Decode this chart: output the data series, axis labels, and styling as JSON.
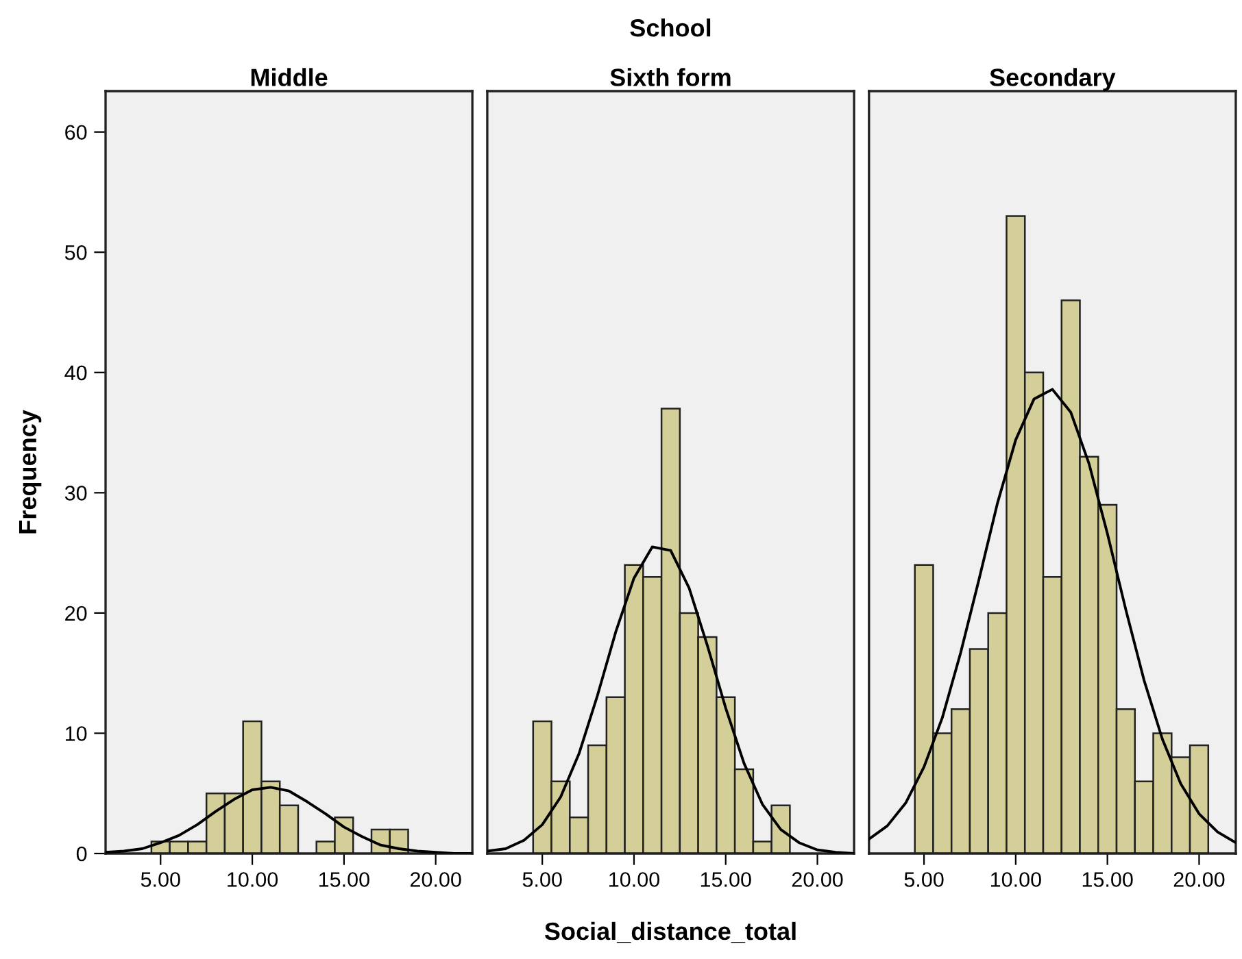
{
  "chart_data": [
    {
      "type": "histogram",
      "title": "Middle",
      "ylabel": "Frequency",
      "annotations": [
        "School"
      ],
      "color": "#d4cf98",
      "bins": [
        4.5,
        5.5,
        6.5,
        7.5,
        8.5,
        9.5,
        10.5,
        11.5,
        12.5,
        13.5,
        14.5,
        15.5,
        16.5,
        17.5,
        18.5
      ],
      "values": [
        1,
        1,
        1,
        5,
        5,
        11,
        6,
        4,
        0,
        1,
        3,
        0,
        2,
        2
      ],
      "series": [
        {
          "type": "line",
          "color": "#000000",
          "x": [
            2,
            3,
            4,
            5,
            6,
            7,
            8,
            9,
            10,
            11,
            12,
            13,
            14,
            15,
            16,
            17,
            18,
            19,
            20,
            21,
            22
          ],
          "values": [
            0.1,
            0.2,
            0.4,
            0.9,
            1.5,
            2.4,
            3.5,
            4.5,
            5.3,
            5.5,
            5.2,
            4.3,
            3.3,
            2.2,
            1.4,
            0.7,
            0.4,
            0.2,
            0.1,
            0.0,
            0.0
          ]
        }
      ],
      "xlim": [
        2,
        22
      ],
      "ylim": [
        0,
        63.4
      ],
      "xticks": [
        {
          "value": 5,
          "label": "5.00"
        },
        {
          "value": 10,
          "label": "10.00"
        },
        {
          "value": 15,
          "label": "15.00"
        },
        {
          "value": 20,
          "label": "20.00"
        }
      ],
      "yticks": [
        0,
        10,
        20,
        30,
        40,
        50,
        60
      ],
      "grid": false
    },
    {
      "type": "histogram",
      "title": "Sixth form",
      "xlabel": "Social_distance_total",
      "color": "#d4cf98",
      "bins": [
        4.5,
        5.5,
        6.5,
        7.5,
        8.5,
        9.5,
        10.5,
        11.5,
        12.5,
        13.5,
        14.5,
        15.5,
        16.5,
        17.5,
        18.5
      ],
      "values": [
        11,
        6,
        3,
        9,
        13,
        24,
        23,
        37,
        20,
        18,
        13,
        7,
        1,
        4
      ],
      "series": [
        {
          "type": "line",
          "color": "#000000",
          "x": [
            2,
            3,
            4,
            5,
            6,
            7,
            8,
            9,
            10,
            11,
            12,
            13,
            14,
            15,
            16,
            17,
            18,
            19,
            20,
            21,
            22
          ],
          "values": [
            0.2,
            0.4,
            1.1,
            2.4,
            4.7,
            8.3,
            13.1,
            18.4,
            22.9,
            25.5,
            25.2,
            22.1,
            17.3,
            12.1,
            7.5,
            4.1,
            2.0,
            0.9,
            0.3,
            0.1,
            0.0
          ]
        }
      ],
      "xlim": [
        2,
        22
      ],
      "ylim": [
        0,
        63.4
      ],
      "xticks": [
        {
          "value": 5,
          "label": "5.00"
        },
        {
          "value": 10,
          "label": "10.00"
        },
        {
          "value": 15,
          "label": "15.00"
        },
        {
          "value": 20,
          "label": "20.00"
        }
      ],
      "tick_labels": "x",
      "grid": false
    },
    {
      "type": "histogram",
      "title": "Secondary",
      "color": "#d4cf98",
      "bins": [
        4.5,
        5.5,
        6.5,
        7.5,
        8.5,
        9.5,
        10.5,
        11.5,
        12.5,
        13.5,
        14.5,
        15.5,
        16.5,
        17.5,
        18.5,
        19.5,
        20.5
      ],
      "values": [
        24,
        10,
        12,
        17,
        20,
        53,
        40,
        23,
        46,
        33,
        29,
        12,
        6,
        10,
        8,
        9
      ],
      "series": [
        {
          "type": "line",
          "color": "#000000",
          "x": [
            2,
            3,
            4,
            5,
            6,
            7,
            8,
            9,
            10,
            11,
            12,
            13,
            14,
            15,
            16,
            17,
            18,
            19,
            20,
            21,
            22
          ],
          "values": [
            1.2,
            2.3,
            4.2,
            7.2,
            11.3,
            16.7,
            22.8,
            29.1,
            34.4,
            37.8,
            38.6,
            36.7,
            32.4,
            26.6,
            20.3,
            14.4,
            9.5,
            5.8,
            3.3,
            1.8,
            0.9
          ]
        }
      ],
      "xlim": [
        2,
        22
      ],
      "ylim": [
        0,
        63.4
      ],
      "xticks": [
        {
          "value": 5,
          "label": "5.00"
        },
        {
          "value": 10,
          "label": "10.00"
        },
        {
          "value": 15,
          "label": "15.00"
        },
        {
          "value": 20,
          "label": "20.00"
        }
      ],
      "tick_labels": "x",
      "grid": false
    }
  ]
}
